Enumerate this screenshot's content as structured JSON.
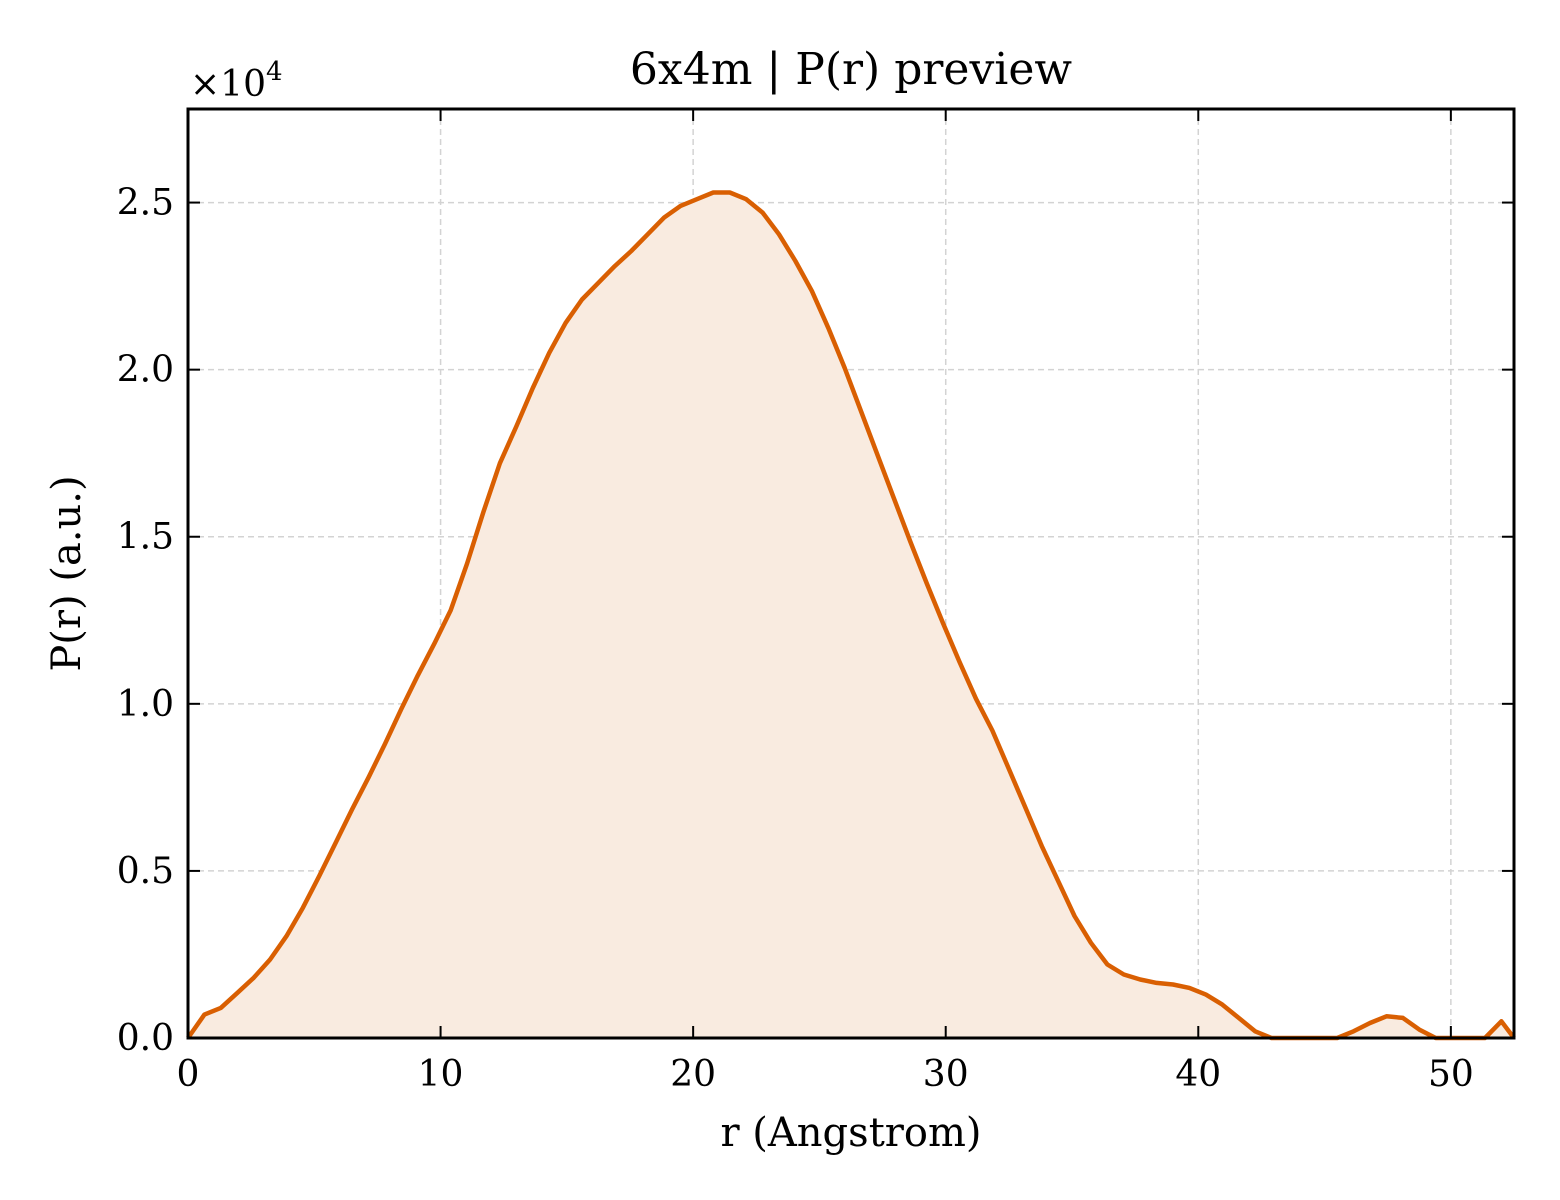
{
  "chart_data": {
    "type": "area",
    "title": "6x4m | P(r) preview",
    "xlabel": "r (Angstrom)",
    "ylabel": "P(r) (a.u.)",
    "y_multiplier": "×10",
    "y_multiplier_exp": "4",
    "xlim": [
      0,
      52.5
    ],
    "ylim": [
      0,
      27800
    ],
    "x_ticks": [
      0,
      10,
      20,
      30,
      40,
      50
    ],
    "x_tick_labels": [
      "0",
      "10",
      "20",
      "30",
      "40",
      "50"
    ],
    "y_ticks": [
      0,
      5000,
      10000,
      15000,
      20000,
      25000
    ],
    "y_tick_labels": [
      "0.0",
      "0.5",
      "1.0",
      "1.5",
      "2.0",
      "2.5"
    ],
    "grid": true,
    "line_color": "#d95f02",
    "fill_color": "#f9ebe0",
    "series": [
      {
        "x": [
          0,
          0.65,
          1.3,
          1.95,
          2.6,
          3.25,
          3.9,
          4.55,
          5.2,
          5.85,
          6.5,
          7.15,
          7.8,
          8.45,
          9.1,
          9.75,
          10.4,
          11.05,
          11.7,
          12.35,
          13.0,
          13.65,
          14.3,
          14.95,
          15.6,
          16.25,
          16.9,
          17.55,
          18.2,
          18.85,
          19.5,
          20.15,
          20.8,
          21.45,
          22.1,
          22.75,
          23.4,
          24.05,
          24.7,
          25.35,
          26.0,
          26.65,
          27.3,
          27.95,
          28.6,
          29.25,
          29.9,
          30.55,
          31.2,
          31.85,
          32.5,
          33.15,
          33.8,
          34.45,
          35.1,
          35.75,
          36.4,
          37.05,
          37.7,
          38.35,
          39.0,
          39.65,
          40.3,
          40.95,
          41.6,
          42.25,
          42.9,
          43.55,
          44.2,
          44.85,
          45.5,
          46.15,
          46.8,
          47.45,
          48.1,
          48.75,
          49.4,
          50.05,
          50.7,
          51.35,
          52.0,
          52.5
        ],
        "y": [
          0,
          700,
          900,
          1350,
          1800,
          2350,
          3050,
          3900,
          4850,
          5850,
          6850,
          7800,
          8800,
          9850,
          10850,
          11800,
          12800,
          14200,
          15750,
          17200,
          18300,
          19450,
          20500,
          21400,
          22100,
          22600,
          23100,
          23550,
          24050,
          24550,
          24900,
          25100,
          25300,
          25300,
          25100,
          24700,
          24050,
          23250,
          22350,
          21250,
          20050,
          18750,
          17450,
          16150,
          14850,
          13600,
          12400,
          11250,
          10150,
          9200,
          8050,
          6900,
          5750,
          4700,
          3650,
          2850,
          2200,
          1900,
          1750,
          1650,
          1600,
          1500,
          1300,
          1000,
          600,
          200,
          0,
          0,
          0,
          0,
          0,
          200,
          450,
          650,
          600,
          250,
          0,
          0,
          0,
          0,
          500,
          0
        ]
      }
    ]
  }
}
